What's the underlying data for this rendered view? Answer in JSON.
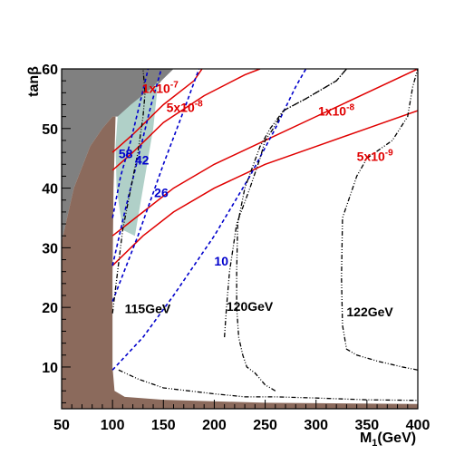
{
  "chart_data": {
    "type": "line",
    "xlabel": "M",
    "xlabel_sub": "1",
    "xlabel_unit": "(GeV)",
    "ylabel": "tanβ",
    "xlim": [
      50,
      400
    ],
    "ylim": [
      3,
      60
    ],
    "xticks": [
      50,
      100,
      150,
      200,
      250,
      300,
      350,
      400
    ],
    "yticks": [
      10,
      20,
      30,
      40,
      50,
      60
    ],
    "colors": {
      "excluded_dark": "#808080",
      "excluded_brown": "#8b6a5c",
      "allowed_band": "#b0d0c8",
      "red": "#e00000",
      "blue": "#0000cc",
      "black": "#000000"
    },
    "regions": [
      {
        "id": "gray",
        "color": "#808080",
        "points": [
          [
            50,
            60
          ],
          [
            160,
            60
          ],
          [
            148,
            58
          ],
          [
            130,
            54
          ],
          [
            118,
            52
          ],
          [
            100,
            52
          ],
          [
            90,
            50
          ],
          [
            78,
            47
          ],
          [
            62,
            40
          ],
          [
            50,
            31
          ]
        ]
      },
      {
        "id": "brown",
        "color": "#8b6a5c",
        "points": [
          [
            50,
            31
          ],
          [
            62,
            40
          ],
          [
            78,
            47
          ],
          [
            90,
            50
          ],
          [
            100,
            52
          ],
          [
            103,
            52
          ],
          [
            101,
            40
          ],
          [
            100,
            25
          ],
          [
            100,
            10
          ],
          [
            102,
            6
          ],
          [
            112,
            5
          ],
          [
            150,
            4.5
          ],
          [
            250,
            4
          ],
          [
            400,
            3.8
          ],
          [
            400,
            3
          ],
          [
            50,
            3
          ]
        ]
      },
      {
        "id": "band",
        "color": "#b0d0c8",
        "points": [
          [
            105,
            52
          ],
          [
            118,
            54
          ],
          [
            140,
            57
          ],
          [
            145,
            58
          ],
          [
            140,
            50
          ],
          [
            130,
            40
          ],
          [
            122,
            32
          ],
          [
            110,
            33
          ],
          [
            104,
            40
          ],
          [
            103,
            47
          ]
        ]
      }
    ],
    "series": [
      {
        "label": "1x10",
        "label_exp": "-7",
        "style": "red",
        "points": [
          [
            100,
            46
          ],
          [
            120,
            49
          ],
          [
            150,
            54
          ],
          [
            180,
            58
          ],
          [
            188,
            60
          ]
        ]
      },
      {
        "label": "5x10",
        "label_exp": "-8",
        "style": "red",
        "points": [
          [
            100,
            43
          ],
          [
            120,
            46
          ],
          [
            150,
            51
          ],
          [
            190,
            55.5
          ],
          [
            230,
            59
          ],
          [
            245,
            60
          ]
        ]
      },
      {
        "label": "1x10",
        "label_exp": "-8",
        "style": "red",
        "points": [
          [
            100,
            32
          ],
          [
            130,
            36
          ],
          [
            160,
            40
          ],
          [
            200,
            44
          ],
          [
            250,
            48
          ],
          [
            300,
            52
          ],
          [
            350,
            56
          ],
          [
            400,
            60
          ]
        ]
      },
      {
        "label": "5x10",
        "label_exp": "-9",
        "style": "red",
        "points": [
          [
            100,
            27
          ],
          [
            130,
            32
          ],
          [
            160,
            36
          ],
          [
            200,
            40
          ],
          [
            250,
            44
          ],
          [
            300,
            47
          ],
          [
            350,
            50
          ],
          [
            400,
            53
          ]
        ]
      },
      {
        "label": "58",
        "style": "blue",
        "points": [
          [
            100,
            35
          ],
          [
            108,
            42
          ],
          [
            118,
            48
          ],
          [
            128,
            55
          ],
          [
            135,
            60
          ]
        ]
      },
      {
        "label": "42",
        "style": "blue",
        "points": [
          [
            100,
            27
          ],
          [
            112,
            36
          ],
          [
            125,
            45
          ],
          [
            138,
            54
          ],
          [
            148,
            60
          ]
        ]
      },
      {
        "label": "26",
        "style": "blue",
        "points": [
          [
            100,
            21
          ],
          [
            125,
            32
          ],
          [
            150,
            44
          ],
          [
            170,
            53
          ],
          [
            185,
            60
          ]
        ]
      },
      {
        "label": "10",
        "style": "blue",
        "points": [
          [
            100,
            9.5
          ],
          [
            130,
            15
          ],
          [
            160,
            22
          ],
          [
            200,
            32
          ],
          [
            235,
            42
          ],
          [
            260,
            50
          ],
          [
            280,
            57
          ],
          [
            290,
            60
          ]
        ]
      },
      {
        "label": "115GeV",
        "style": "black",
        "points": [
          [
            100,
            19
          ],
          [
            105,
            26
          ],
          [
            110,
            33
          ],
          [
            118,
            40
          ],
          [
            125,
            46
          ],
          [
            130,
            52
          ],
          [
            132,
            56
          ],
          [
            130,
            60
          ]
        ]
      },
      {
        "label": "120GeV",
        "style": "black",
        "points": [
          [
            106,
            9.5
          ],
          [
            125,
            8
          ],
          [
            150,
            6.5
          ],
          [
            200,
            5.5
          ],
          [
            230,
            5
          ],
          [
            260,
            5
          ],
          [
            300,
            4.8
          ],
          [
            350,
            4.5
          ],
          [
            400,
            4.4
          ]
        ]
      },
      {
        "label": "122GeV",
        "style": "black",
        "points": [
          [
            210,
            15
          ],
          [
            212,
            20
          ],
          [
            215,
            26
          ],
          [
            222,
            34
          ],
          [
            235,
            40
          ],
          [
            245,
            45
          ],
          [
            250,
            48
          ],
          [
            258,
            50
          ],
          [
            268,
            53
          ],
          [
            290,
            55
          ],
          [
            320,
            58
          ],
          [
            330,
            60
          ]
        ]
      },
      {
        "label": "",
        "style": "black",
        "points": [
          [
            400,
            9.5
          ],
          [
            385,
            10
          ],
          [
            360,
            11
          ],
          [
            340,
            12
          ],
          [
            330,
            13
          ],
          [
            326,
            17
          ],
          [
            325,
            25
          ],
          [
            326,
            35
          ],
          [
            340,
            42
          ],
          [
            350,
            45
          ],
          [
            375,
            48
          ],
          [
            390,
            52
          ],
          [
            395,
            57
          ],
          [
            400,
            60
          ]
        ]
      },
      {
        "label": "",
        "style": "black",
        "points": [
          [
            260,
            6
          ],
          [
            250,
            7
          ],
          [
            240,
            9
          ],
          [
            232,
            10
          ],
          [
            228,
            12
          ],
          [
            224,
            15
          ],
          [
            222,
            20
          ],
          [
            222,
            26
          ],
          [
            223,
            34
          ],
          [
            230,
            40
          ],
          [
            245,
            47
          ],
          [
            255,
            50
          ],
          [
            268,
            53
          ],
          [
            290,
            55
          ],
          [
            320,
            58
          ],
          [
            330,
            60
          ]
        ]
      }
    ],
    "labels": {
      "red": [
        {
          "text": "1x10",
          "exp": "-7",
          "x": 129,
          "y": 56
        },
        {
          "text": "5x10",
          "exp": "-8",
          "x": 153,
          "y": 52.8
        },
        {
          "text": "1x10",
          "exp": "-8",
          "x": 302,
          "y": 52.2
        },
        {
          "text": "5x10",
          "exp": "-9",
          "x": 340,
          "y": 44.6
        }
      ],
      "blue": [
        {
          "text": "58",
          "x": 106,
          "y": 45
        },
        {
          "text": "42",
          "x": 122,
          "y": 44
        },
        {
          "text": "26",
          "x": 141,
          "y": 38.5
        },
        {
          "text": "10",
          "x": 200,
          "y": 27
        }
      ],
      "black": [
        {
          "text": "115GeV",
          "x": 112,
          "y": 19
        },
        {
          "text": "120GeV",
          "x": 212,
          "y": 19.4
        },
        {
          "text": "122GeV",
          "x": 330,
          "y": 18.5
        }
      ]
    }
  }
}
